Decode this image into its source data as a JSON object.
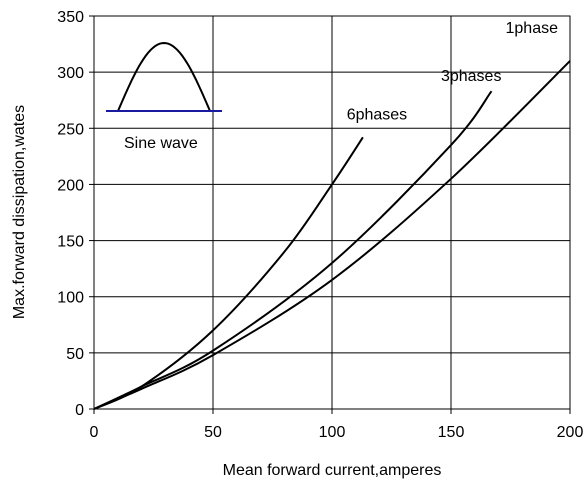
{
  "chart_data": {
    "type": "line",
    "xlabel": "Mean forward current,amperes",
    "ylabel": "Max.forward dissipation,wates",
    "xlim": [
      0,
      200
    ],
    "ylim": [
      0,
      350
    ],
    "xticks": [
      0,
      50,
      100,
      150,
      200
    ],
    "yticks": [
      0,
      50,
      100,
      150,
      200,
      250,
      300,
      350
    ],
    "grid": true,
    "series": [
      {
        "name": "1phase",
        "x": [
          0,
          20,
          50,
          100,
          150,
          200
        ],
        "y": [
          0,
          18,
          48,
          115,
          205,
          310
        ]
      },
      {
        "name": "3phases",
        "x": [
          0,
          20,
          50,
          100,
          150,
          167
        ],
        "y": [
          0,
          20,
          52,
          130,
          235,
          283
        ]
      },
      {
        "name": "6phases",
        "x": [
          0,
          20,
          50,
          80,
          100,
          113
        ],
        "y": [
          0,
          20,
          70,
          140,
          200,
          242
        ]
      }
    ],
    "inset": {
      "label": "Sine wave",
      "line_color": "#1a1aa0"
    }
  }
}
